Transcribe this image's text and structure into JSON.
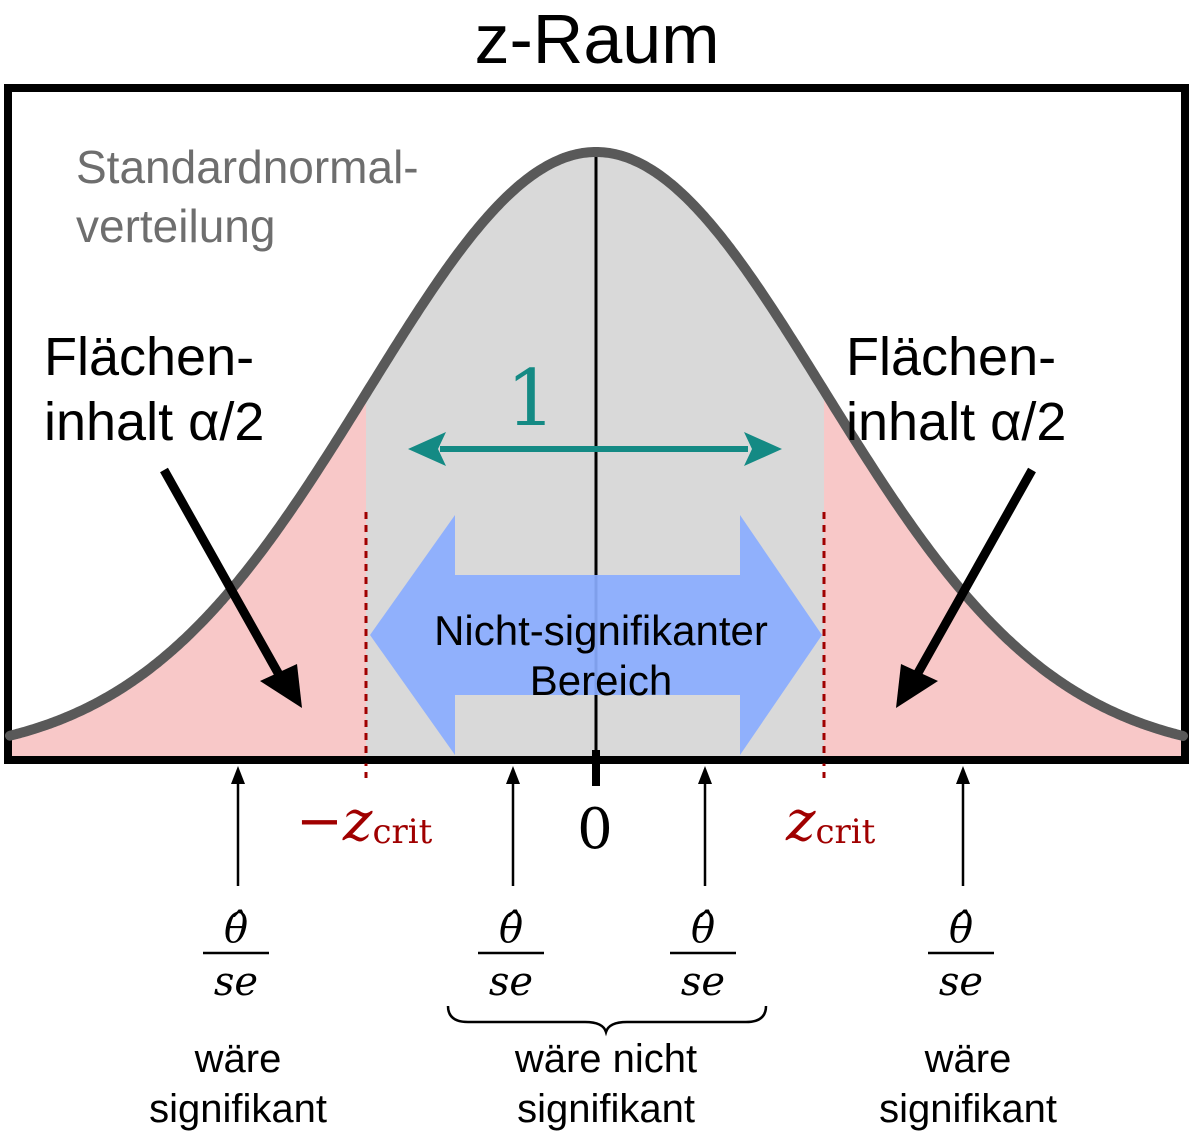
{
  "title": "z-Raum",
  "curve_label_line1": "Standardnormal-",
  "curve_label_line2": "verteilung",
  "area_label_left": {
    "line1": "Flächen-",
    "line2": "inhalt α/2"
  },
  "area_label_right": {
    "line1": "Flächen-",
    "line2": "inhalt α/2"
  },
  "sd_label": "1",
  "region_label": {
    "line1": "Nicht-signifikanter",
    "line2": "Bereich"
  },
  "axis": {
    "minus_sign": "−",
    "z": "z",
    "crit": "crit",
    "zero": "0"
  },
  "estimate_fraction": {
    "numerator": "θ̂",
    "denominator": "se"
  },
  "outcome_labels": {
    "left": {
      "line1": "wäre",
      "line2": "signifikant"
    },
    "middle": {
      "line1": "wäre nicht",
      "line2": "signifikant"
    },
    "right": {
      "line1": "wäre",
      "line2": "signifikant"
    }
  },
  "colors": {
    "curve": "#595959",
    "curve_fill": "#d9d9d9",
    "tail_fill": "#f8c8c8",
    "critical": "#a00000",
    "sd_arrow": "#148a84",
    "region_arrow": "#8aadff",
    "curve_label": "#6e6e6e"
  }
}
